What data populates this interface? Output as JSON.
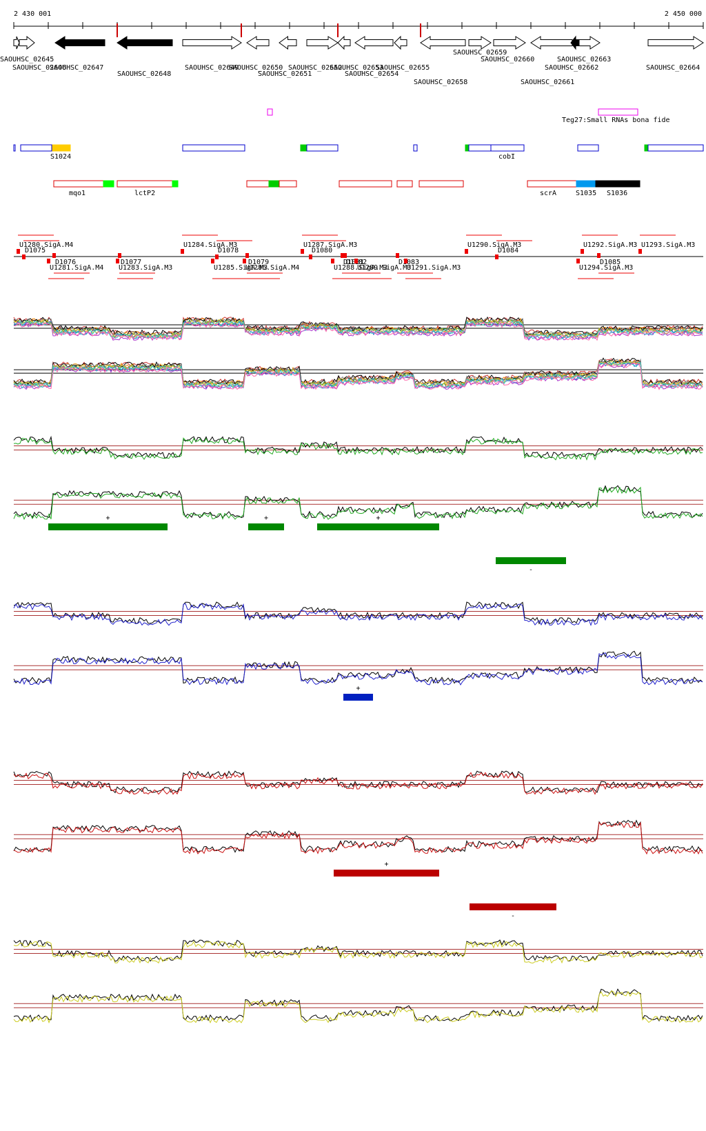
{
  "ruler": {
    "start": "2 430 001",
    "end": "2 450 000"
  },
  "genes": [
    "SAOUHSC_02645",
    "SAOUHSC_02646",
    "SAOUHSC_02647",
    "SAOUHSC_02648",
    "SAOUHSC_02649",
    "SAOUHSC_02650",
    "SAOUHSC_02651",
    "SAOUHSC_02652",
    "SAOUHSC_02653",
    "SAOUHSC_02654",
    "SAOUHSC_02655",
    "SAOUHSC_02658",
    "SAOUHSC_02659",
    "SAOUHSC_02660",
    "SAOUHSC_02661",
    "SAOUHSC_02662",
    "SAOUHSC_02663",
    "SAOUHSC_02664"
  ],
  "small_rna": "Teg27:Small RNAs bona fide",
  "features": [
    "S1024",
    "cobI",
    "mqo1",
    "lctP2",
    "scrA",
    "S1035",
    "S1036"
  ],
  "promoters": [
    "U1280.SigA.M4",
    "D1075",
    "D1076",
    "U1281.SigA.M4",
    "D1077",
    "U1283.SigA.M3",
    "U1284.SigA.M3",
    "D1078",
    "D1079",
    "U1285.SigA.M3",
    "U1286.SigA.M4",
    "U1287.SigA.M3",
    "D1080",
    "D1081",
    "D1082",
    "U1288.SigA.M3",
    "U1289.SigA.M3",
    "D1083",
    "U1291.SigA.M3",
    "U1290.SigA.M3",
    "D1084",
    "U1292.SigA.M3",
    "U1293.SigA.M3",
    "D1085",
    "U1294.SigA.M3"
  ],
  "strands": [
    "+",
    "+",
    "+",
    "-",
    "+",
    "+",
    "-"
  ]
}
